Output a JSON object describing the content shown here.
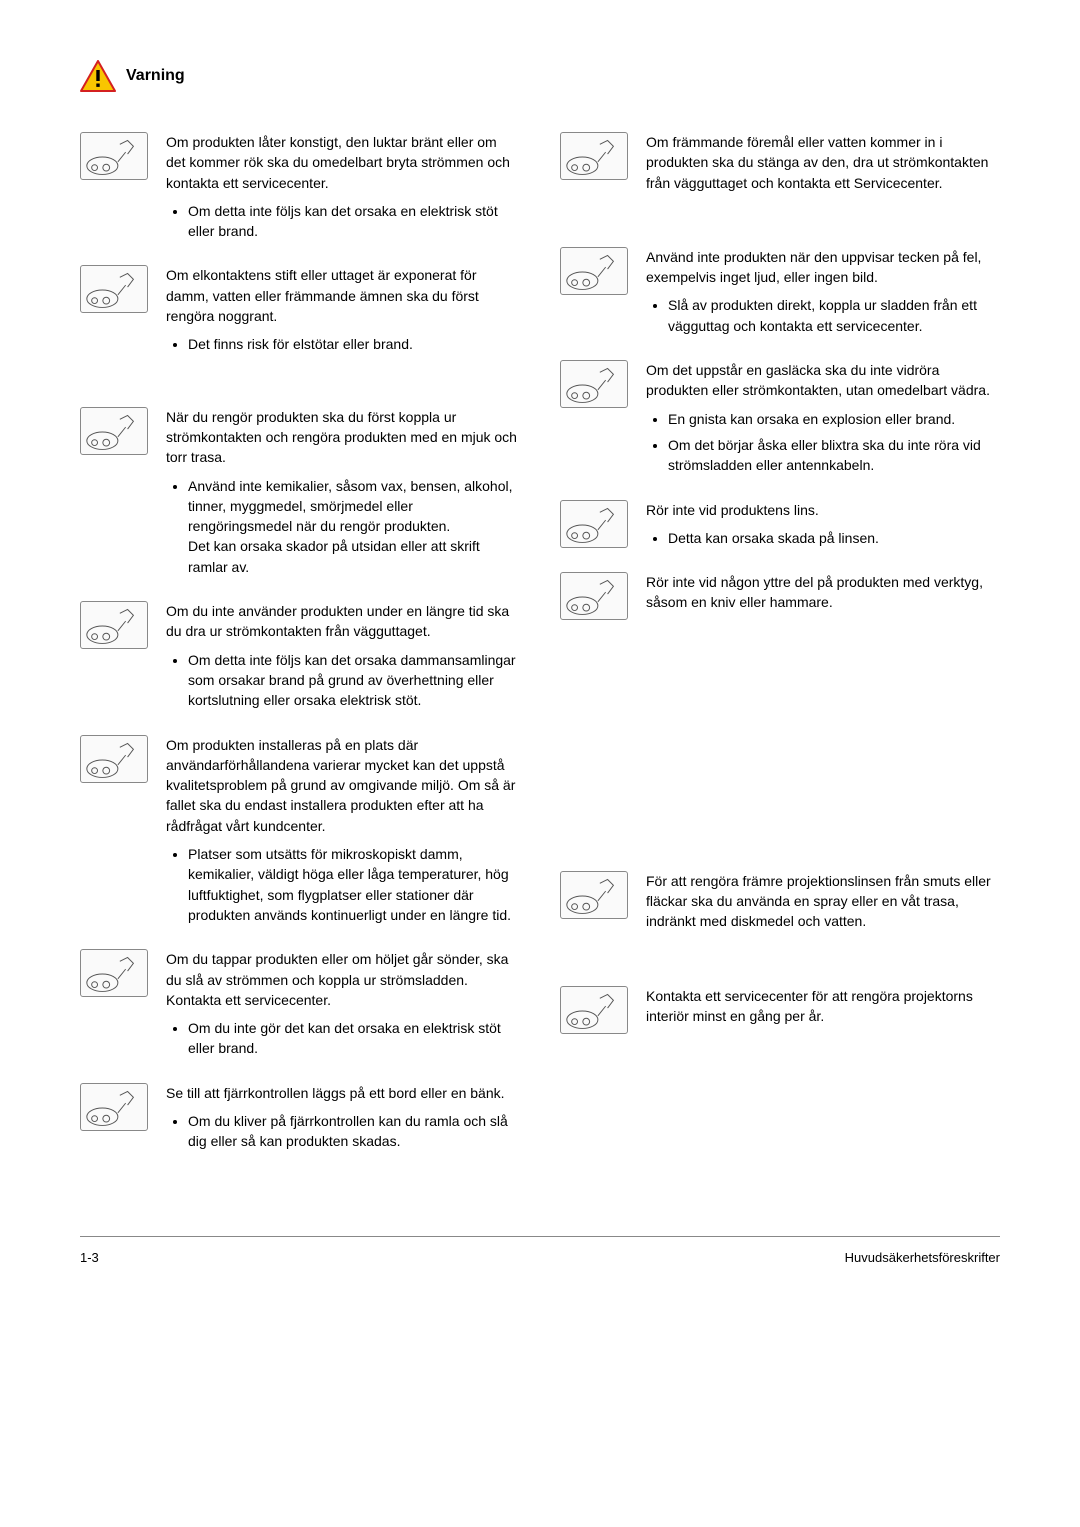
{
  "header": {
    "warning_label": "Varning"
  },
  "left": [
    {
      "text": "Om produkten låter konstigt, den luktar bränt eller om det kommer rök ska du omedelbart bryta strömmen och kontakta ett servicecenter.",
      "bullets": [
        "Om detta inte följs kan det orsaka en elektrisk stöt eller brand."
      ],
      "show_icon": true
    },
    {
      "text": "Om elkontaktens stift eller uttaget är exponerat för damm, vatten eller främmande ämnen ska du först rengöra noggrant.",
      "bullets": [
        "Det finns risk för elstötar eller brand."
      ],
      "show_icon": true
    },
    {
      "text": "När du rengör produkten ska du först koppla ur strömkontakten och rengöra produkten med en mjuk och torr trasa.",
      "bullets": [
        "Använd inte kemikalier, såsom vax, bensen, alkohol, tinner, myggmedel, smörjmedel eller rengöringsmedel när du rengör produkten.\nDet kan orsaka skador på utsidan eller att skrift ramlar av."
      ],
      "show_icon": true,
      "top_gap": true
    },
    {
      "text": "Om du inte använder produkten under en längre tid ska du dra ur strömkontakten från vägguttaget.",
      "bullets": [
        "Om detta inte följs kan det orsaka dammansamlingar som orsakar brand på grund av överhettning eller kortslutning eller orsaka elektrisk stöt."
      ],
      "show_icon": true
    },
    {
      "text": "Om produkten installeras på en plats där användarförhållandena varierar mycket kan det uppstå kvalitetsproblem på grund av omgivande miljö. Om så är fallet ska du endast installera produkten efter att ha rådfrågat vårt kundcenter.",
      "bullets": [
        "Platser som utsätts för mikroskopiskt damm, kemikalier, väldigt höga eller låga temperaturer, hög luftfuktighet, som flygplatser eller stationer där produkten används kontinuerligt under en längre tid."
      ],
      "show_icon": true
    },
    {
      "text": "Om du tappar produkten eller om höljet går sönder, ska du slå av strömmen och koppla ur strömsladden. Kontakta ett servicecenter.",
      "bullets": [
        "Om du inte gör det kan det orsaka en elektrisk stöt eller brand."
      ],
      "show_icon": true
    },
    {
      "text": "Se till att fjärrkontrollen läggs på ett bord eller en bänk.",
      "bullets": [
        "Om du kliver på fjärrkontrollen kan du ramla och slå dig eller så kan produkten skadas."
      ],
      "show_icon": true
    }
  ],
  "right": [
    {
      "text": "Om främmande föremål eller vatten kommer in i produkten ska du stänga av den, dra ut strömkontakten från vägguttaget och kontakta ett Servicecenter.",
      "bullets": [],
      "show_icon": true
    },
    {
      "text": "Använd inte produkten när den uppvisar tecken på fel, exempelvis inget ljud, eller ingen bild.",
      "bullets": [
        "Slå av produkten direkt, koppla ur sladden från ett vägguttag och kontakta ett servicecenter."
      ],
      "show_icon": true,
      "top_gap": true
    },
    {
      "text": "Om det uppstår en gasläcka ska du inte vidröra produkten eller strömkontakten, utan omedelbart vädra.",
      "bullets": [
        "En gnista kan orsaka en explosion eller brand.",
        "Om det börjar åska eller blixtra ska du inte röra vid strömsladden eller antennkabeln."
      ],
      "show_icon": true
    },
    {
      "text": "Rör inte vid produktens lins.",
      "bullets": [
        "Detta kan orsaka skada på linsen."
      ],
      "show_icon": true
    },
    {
      "text": "Rör inte vid någon yttre del på produkten med verktyg, såsom en kniv eller hammare.",
      "bullets": [],
      "show_icon": true,
      "large_bottom_gap": true
    },
    {
      "text": "För att rengöra främre projektionslinsen från smuts eller fläckar ska du använda en spray eller en våt trasa, indränkt med diskmedel och vatten.",
      "bullets": [],
      "show_icon": true
    },
    {
      "text": "Kontakta ett servicecenter för att rengöra projektorns interiör minst en gång per år.",
      "bullets": [],
      "show_icon": true,
      "top_gap": true
    }
  ],
  "footer": {
    "page": "1-3",
    "section": "Huvudsäkerhetsföreskrifter"
  },
  "colors": {
    "warn_yellow": "#f9c500",
    "warn_red": "#d42020",
    "text": "#000000",
    "border": "#888888"
  }
}
